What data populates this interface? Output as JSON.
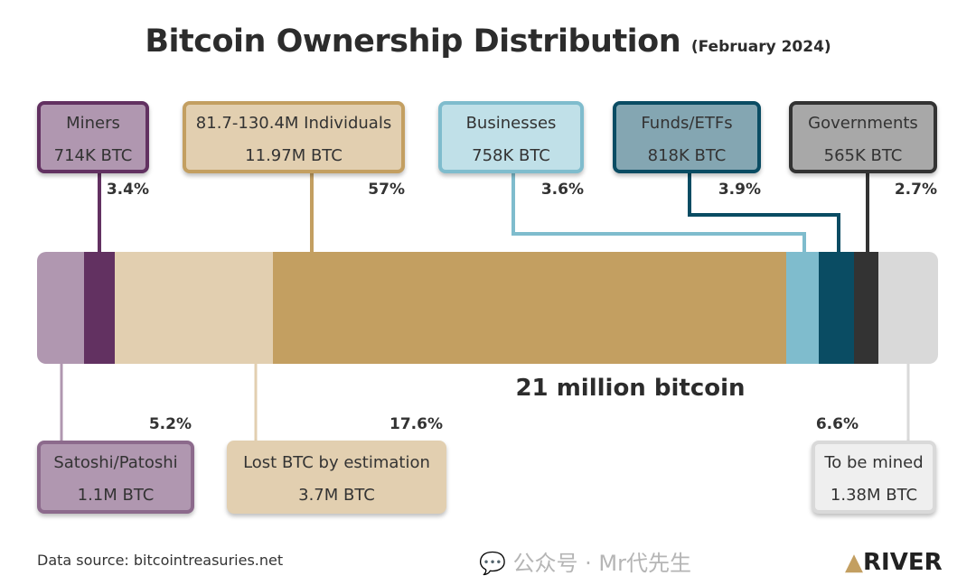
{
  "chart_data": {
    "type": "bar",
    "orientation": "horizontal-stacked",
    "title": "Bitcoin Ownership Distribution",
    "subtitle": "(February 2024)",
    "total_label": "21 million bitcoin",
    "unit": "% of 21M BTC",
    "segments": [
      {
        "key": "satoshi",
        "name": "Satoshi/Patoshi",
        "amount": "1.1M BTC",
        "percent": 5.2,
        "percent_label": "5.2%",
        "color": "#b097b0",
        "border": "#8c6a8c",
        "position": "bottom"
      },
      {
        "key": "miners",
        "name": "Miners",
        "amount": "714K BTC",
        "percent": 3.4,
        "percent_label": "3.4%",
        "color": "#623161",
        "border": "#623161",
        "fill": "#b097b0",
        "position": "top"
      },
      {
        "key": "lost",
        "name": "Lost BTC by estimation",
        "amount": "3.7M BTC",
        "percent": 17.6,
        "percent_label": "17.6%",
        "color": "#e2cfb0",
        "border": "#e2cfb0",
        "fill": "#e2cfb0",
        "position": "bottom"
      },
      {
        "key": "individuals",
        "name": "81.7-130.4M Individuals",
        "amount": "11.97M BTC",
        "percent": 57,
        "percent_label": "57%",
        "color": "#c39f61",
        "border": "#c39f61",
        "fill": "#e2cfb0",
        "position": "top"
      },
      {
        "key": "businesses",
        "name": "Businesses",
        "amount": "758K BTC",
        "percent": 3.6,
        "percent_label": "3.6%",
        "color": "#7fbccd",
        "border": "#7fbccd",
        "fill": "#c0e0e8",
        "position": "top"
      },
      {
        "key": "funds",
        "name": "Funds/ETFs",
        "amount": "818K BTC",
        "percent": 3.9,
        "percent_label": "3.9%",
        "color": "#0a4c63",
        "border": "#0a4c63",
        "fill": "#84a6b2",
        "position": "top"
      },
      {
        "key": "governments",
        "name": "Governments",
        "amount": "565K BTC",
        "percent": 2.7,
        "percent_label": "2.7%",
        "color": "#333333",
        "border": "#333333",
        "fill": "#a8a8a8",
        "position": "top"
      },
      {
        "key": "tobemined",
        "name": "To be mined",
        "amount": "1.38M BTC",
        "percent": 6.6,
        "percent_label": "6.6%",
        "color": "#d9d9d9",
        "border": "#d9d9d9",
        "fill": "#efefef",
        "position": "bottom"
      }
    ]
  },
  "footer": {
    "source": "Data source: bitcointreasuries.net",
    "watermark": "公众号 · Mr代先生",
    "logo": "RIVER"
  }
}
